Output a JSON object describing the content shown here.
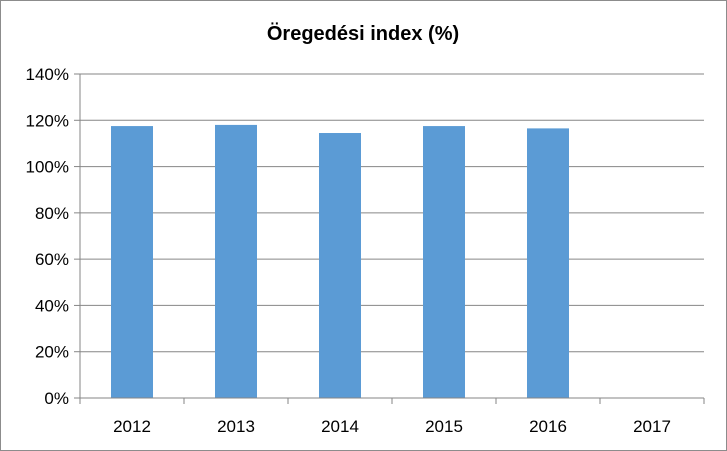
{
  "chart_data": {
    "type": "bar",
    "title": "Öregedési index (%)",
    "xlabel": "",
    "ylabel": "",
    "categories": [
      "2012",
      "2013",
      "2014",
      "2015",
      "2016",
      "2017"
    ],
    "values": [
      117.5,
      118,
      114.5,
      117.5,
      116.5,
      null
    ],
    "ylim": [
      0,
      140
    ],
    "y_ticks": [
      0,
      20,
      40,
      60,
      80,
      100,
      120,
      140
    ],
    "y_tick_labels": [
      "0%",
      "20%",
      "40%",
      "60%",
      "80%",
      "100%",
      "120%",
      "140%"
    ],
    "grid": true,
    "legend": "none",
    "bar_color": "#5b9bd5",
    "grid_color": "#868686",
    "axis_color": "#868686"
  }
}
